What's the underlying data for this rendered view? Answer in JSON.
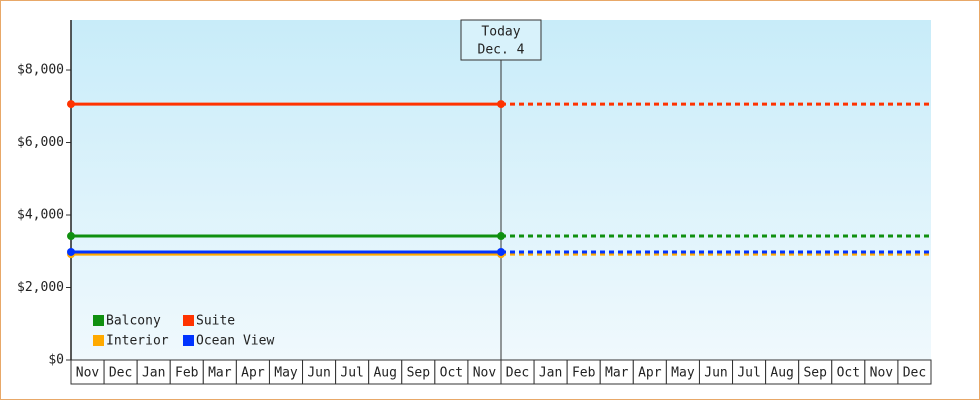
{
  "chart_data": {
    "type": "line",
    "annotation": {
      "title": "Today",
      "date": "Dec. 4"
    },
    "categories": [
      "Nov",
      "Dec",
      "Jan",
      "Feb",
      "Mar",
      "Apr",
      "May",
      "Jun",
      "Jul",
      "Aug",
      "Sep",
      "Oct",
      "Nov",
      "Dec",
      "Jan",
      "Feb",
      "Mar",
      "Apr",
      "May",
      "Jun",
      "Jul",
      "Aug",
      "Sep",
      "Oct",
      "Nov",
      "Dec"
    ],
    "x": [
      0,
      13
    ],
    "xlim": [
      0,
      26
    ],
    "series": [
      {
        "name": "Balcony",
        "color": "#109010",
        "values": [
          3420,
          3420
        ]
      },
      {
        "name": "Suite",
        "color": "#ff3300",
        "values": [
          7060,
          7060
        ]
      },
      {
        "name": "Interior",
        "color": "#ffaa00",
        "values": [
          2920,
          2920
        ]
      },
      {
        "name": "Ocean View",
        "color": "#0033ff",
        "values": [
          2980,
          2980
        ]
      }
    ],
    "ylim": [
      0,
      9380
    ],
    "yticks": [
      {
        "value": 0,
        "label": "$0"
      },
      {
        "value": 2000,
        "label": "$2,000"
      },
      {
        "value": 4000,
        "label": "$4,000"
      },
      {
        "value": 6000,
        "label": "$6,000"
      },
      {
        "value": 8000,
        "label": "$8,000"
      }
    ],
    "legend": "bottom-left"
  }
}
